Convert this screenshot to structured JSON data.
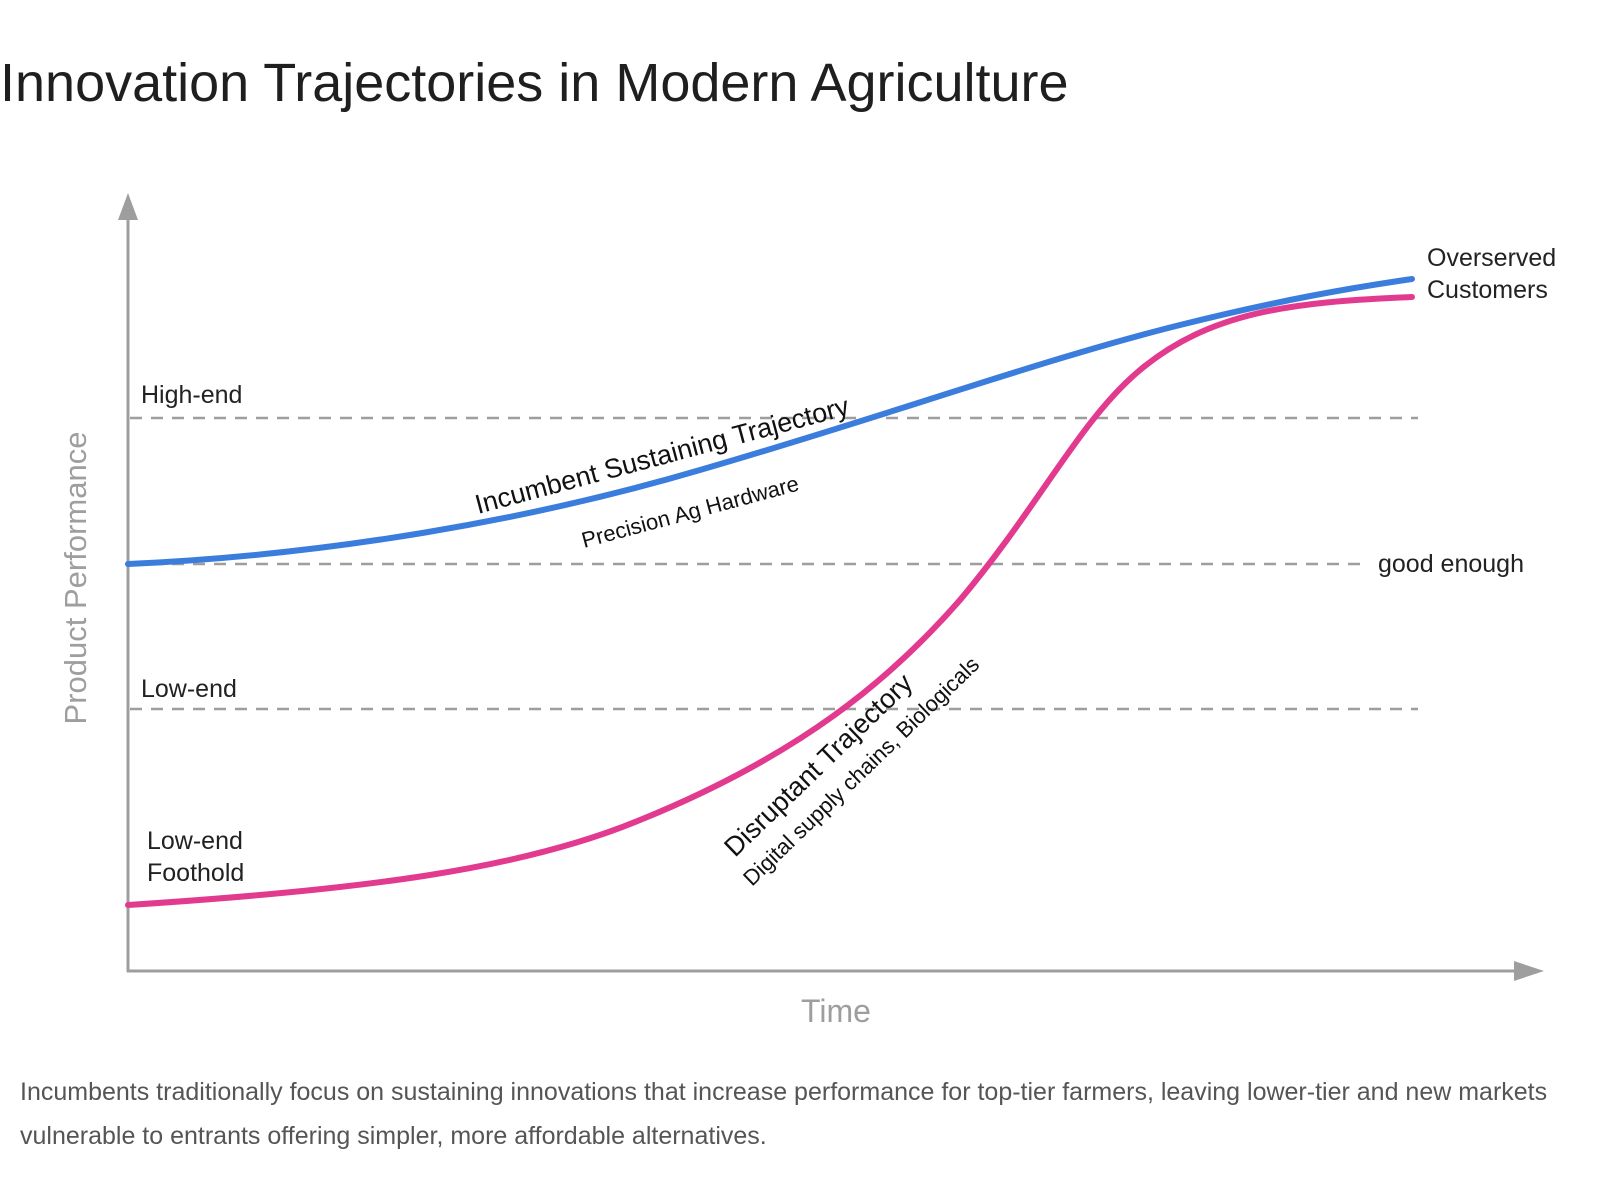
{
  "title": "Innovation Trajectories in Modern Agriculture",
  "caption": "Incumbents traditionally focus on sustaining innovations that increase performance for top-tier farmers, leaving lower-tier and new markets vulnerable to entrants offering simpler, more affordable alternatives.",
  "axes": {
    "y_label": "Product Performance",
    "x_label": "Time"
  },
  "levels": {
    "high_end": "High-end",
    "good_enough": "good enough",
    "low_end": "Low-end"
  },
  "labels": {
    "low_end_foothold_line1": "Low-end",
    "low_end_foothold_line2": "Foothold",
    "overserved_line1": "Overserved",
    "overserved_line2": "Customers"
  },
  "trajectories": {
    "incumbent": {
      "name": "Incumbent Sustaining Trajectory",
      "sub": "Precision Ag Hardware",
      "color": "#3b7ddd"
    },
    "disruptant": {
      "name": "Disruptant Trajectory",
      "sub": "Digital supply chains, Biologicals",
      "color": "#e23a8e"
    }
  },
  "colors": {
    "axis": "#9e9e9e",
    "dashed": "#9e9e9e",
    "label_text": "#222222"
  }
}
